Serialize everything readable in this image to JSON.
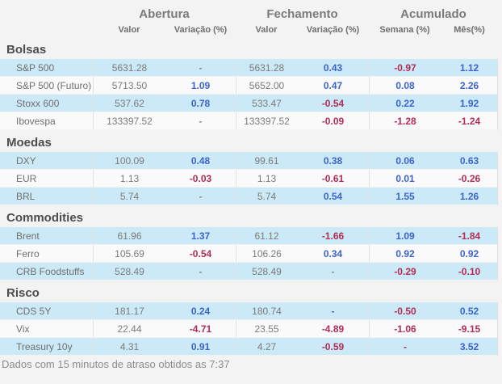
{
  "table": {
    "column_groups": [
      {
        "label": "Abertura",
        "subcolumns": [
          "Valor",
          "Variação (%)"
        ]
      },
      {
        "label": "Fechamento",
        "subcolumns": [
          "Valor",
          "Variação (%)"
        ]
      },
      {
        "label": "Acumulado",
        "subcolumns": [
          "Semana (%)",
          "Mês(%)"
        ]
      }
    ],
    "sections": [
      {
        "title": "Bolsas",
        "rows": [
          {
            "name": "S&P 500",
            "cells": [
              {
                "v": "5631.28",
                "c": "neutral"
              },
              {
                "v": "-",
                "c": "neutral"
              },
              {
                "v": "5631.28",
                "c": "neutral"
              },
              {
                "v": "0.43",
                "c": "positive"
              },
              {
                "v": "-0.97",
                "c": "negative"
              },
              {
                "v": "1.12",
                "c": "positive"
              }
            ]
          },
          {
            "name": "S&P 500 (Futuro)",
            "cells": [
              {
                "v": "5713.50",
                "c": "neutral"
              },
              {
                "v": "1.09",
                "c": "positive"
              },
              {
                "v": "5652.00",
                "c": "neutral"
              },
              {
                "v": "0.47",
                "c": "positive"
              },
              {
                "v": "0.08",
                "c": "positive"
              },
              {
                "v": "2.26",
                "c": "positive"
              }
            ]
          },
          {
            "name": "Stoxx 600",
            "cells": [
              {
                "v": "537.62",
                "c": "neutral"
              },
              {
                "v": "0.78",
                "c": "positive"
              },
              {
                "v": "533.47",
                "c": "neutral"
              },
              {
                "v": "-0.54",
                "c": "negative"
              },
              {
                "v": "0.22",
                "c": "positive"
              },
              {
                "v": "1.92",
                "c": "positive"
              }
            ]
          },
          {
            "name": "Ibovespa",
            "cells": [
              {
                "v": "133397.52",
                "c": "neutral"
              },
              {
                "v": "-",
                "c": "neutral"
              },
              {
                "v": "133397.52",
                "c": "neutral"
              },
              {
                "v": "-0.09",
                "c": "negative"
              },
              {
                "v": "-1.28",
                "c": "negative"
              },
              {
                "v": "-1.24",
                "c": "negative"
              }
            ]
          }
        ]
      },
      {
        "title": "Moedas",
        "rows": [
          {
            "name": "DXY",
            "cells": [
              {
                "v": "100.09",
                "c": "neutral"
              },
              {
                "v": "0.48",
                "c": "positive"
              },
              {
                "v": "99.61",
                "c": "neutral"
              },
              {
                "v": "0.38",
                "c": "positive"
              },
              {
                "v": "0.06",
                "c": "positive"
              },
              {
                "v": "0.63",
                "c": "positive"
              }
            ]
          },
          {
            "name": "EUR",
            "cells": [
              {
                "v": "1.13",
                "c": "neutral"
              },
              {
                "v": "-0.03",
                "c": "negative"
              },
              {
                "v": "1.13",
                "c": "neutral"
              },
              {
                "v": "-0.61",
                "c": "negative"
              },
              {
                "v": "0.01",
                "c": "positive"
              },
              {
                "v": "-0.26",
                "c": "negative"
              }
            ]
          },
          {
            "name": "BRL",
            "cells": [
              {
                "v": "5.74",
                "c": "neutral"
              },
              {
                "v": "-",
                "c": "neutral"
              },
              {
                "v": "5.74",
                "c": "neutral"
              },
              {
                "v": "0.54",
                "c": "positive"
              },
              {
                "v": "1.55",
                "c": "positive"
              },
              {
                "v": "1.26",
                "c": "positive"
              }
            ]
          }
        ]
      },
      {
        "title": "Commodities",
        "rows": [
          {
            "name": "Brent",
            "cells": [
              {
                "v": "61.96",
                "c": "neutral"
              },
              {
                "v": "1.37",
                "c": "positive"
              },
              {
                "v": "61.12",
                "c": "neutral"
              },
              {
                "v": "-1.66",
                "c": "negative"
              },
              {
                "v": "1.09",
                "c": "positive"
              },
              {
                "v": "-1.84",
                "c": "negative"
              }
            ]
          },
          {
            "name": "Ferro",
            "cells": [
              {
                "v": "105.69",
                "c": "neutral"
              },
              {
                "v": "-0.54",
                "c": "negative"
              },
              {
                "v": "106.26",
                "c": "neutral"
              },
              {
                "v": "0.34",
                "c": "positive"
              },
              {
                "v": "0.92",
                "c": "positive"
              },
              {
                "v": "0.92",
                "c": "positive"
              }
            ]
          },
          {
            "name": "CRB Foodstuffs",
            "cells": [
              {
                "v": "528.49",
                "c": "neutral"
              },
              {
                "v": "-",
                "c": "neutral"
              },
              {
                "v": "528.49",
                "c": "neutral"
              },
              {
                "v": "-",
                "c": "neutral"
              },
              {
                "v": "-0.29",
                "c": "negative"
              },
              {
                "v": "-0.10",
                "c": "negative"
              }
            ]
          }
        ]
      },
      {
        "title": "Risco",
        "rows": [
          {
            "name": "CDS 5Y",
            "cells": [
              {
                "v": "181.17",
                "c": "neutral"
              },
              {
                "v": "0.24",
                "c": "positive"
              },
              {
                "v": "180.74",
                "c": "neutral"
              },
              {
                "v": "-",
                "c": "positive"
              },
              {
                "v": "-0.50",
                "c": "negative"
              },
              {
                "v": "0.52",
                "c": "positive"
              }
            ]
          },
          {
            "name": "Vix",
            "cells": [
              {
                "v": "22.44",
                "c": "neutral"
              },
              {
                "v": "-4.71",
                "c": "negative"
              },
              {
                "v": "23.55",
                "c": "neutral"
              },
              {
                "v": "-4.89",
                "c": "negative"
              },
              {
                "v": "-1.06",
                "c": "negative"
              },
              {
                "v": "-9.15",
                "c": "negative"
              }
            ]
          },
          {
            "name": "Treasury 10y",
            "cells": [
              {
                "v": "4.31",
                "c": "neutral"
              },
              {
                "v": "0.91",
                "c": "positive"
              },
              {
                "v": "4.27",
                "c": "neutral"
              },
              {
                "v": "-0.59",
                "c": "negative"
              },
              {
                "v": "-",
                "c": "negative"
              },
              {
                "v": "3.52",
                "c": "positive"
              }
            ]
          }
        ]
      }
    ]
  },
  "footer": {
    "note": "Dados com 15 minutos de atraso obtidos as 7:37"
  },
  "colors": {
    "positive": "#3d64cc",
    "negative": "#b32d56",
    "row_highlight": "#cbe9f6"
  }
}
